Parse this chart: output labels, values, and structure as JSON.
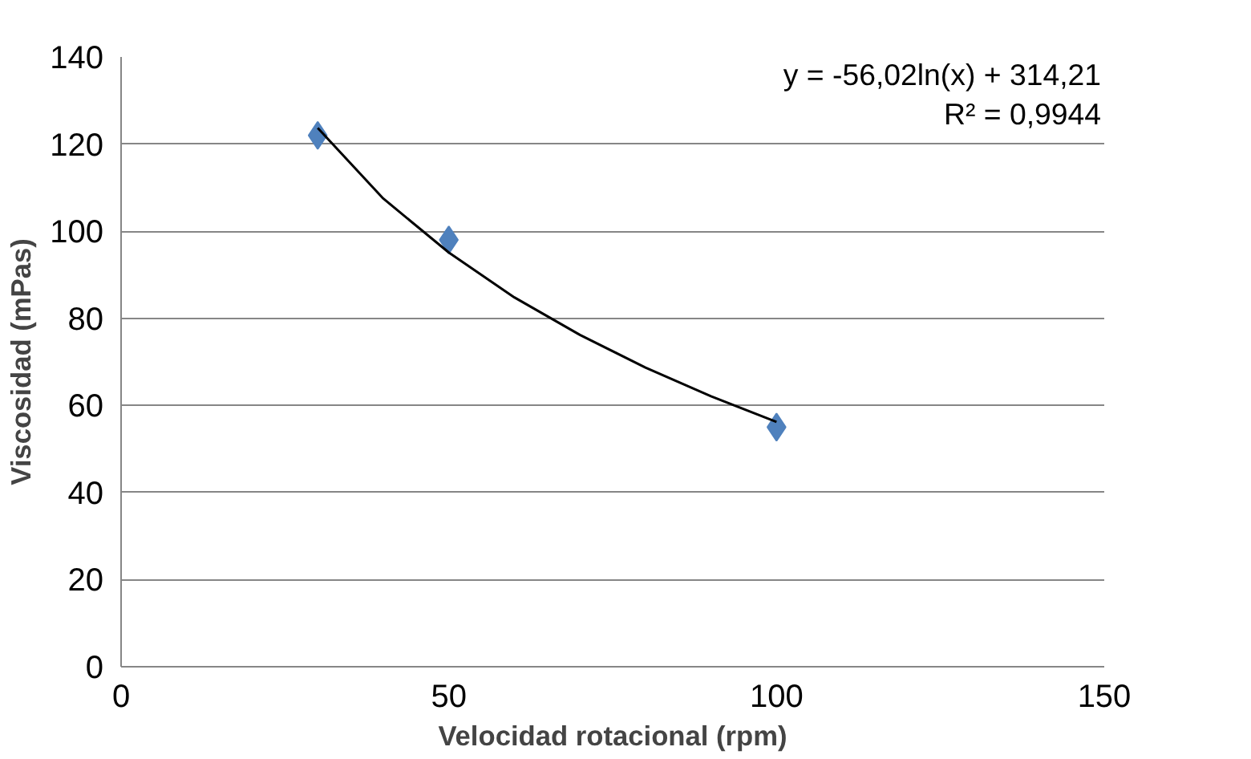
{
  "chart_data": {
    "type": "scatter",
    "xlabel": "Velocidad rotacional (rpm)",
    "ylabel": "Viscosidad (mPas)",
    "xlim": [
      0,
      150
    ],
    "xticks": [
      0,
      50,
      100,
      150
    ],
    "ylim": [
      0,
      140
    ],
    "yticks": [
      0,
      20,
      40,
      60,
      80,
      100,
      120,
      140
    ],
    "grid": "y",
    "marker": "diamond",
    "series": [
      {
        "type": "scatter",
        "color": "#4f81bd",
        "x": [
          30,
          50,
          100
        ],
        "values": [
          122,
          98,
          55
        ]
      },
      {
        "type": "line",
        "color": "#000000",
        "marker": "none",
        "line_style": "solid",
        "x": [
          30,
          40,
          50,
          60,
          70,
          80,
          90,
          100
        ],
        "values": [
          123.7,
          107.5,
          95.1,
          84.8,
          76.2,
          68.7,
          62.1,
          56.2
        ]
      }
    ],
    "annotations": [
      "y = -56,02ln(x) + 314,21",
      "R² = 0,9944"
    ]
  }
}
